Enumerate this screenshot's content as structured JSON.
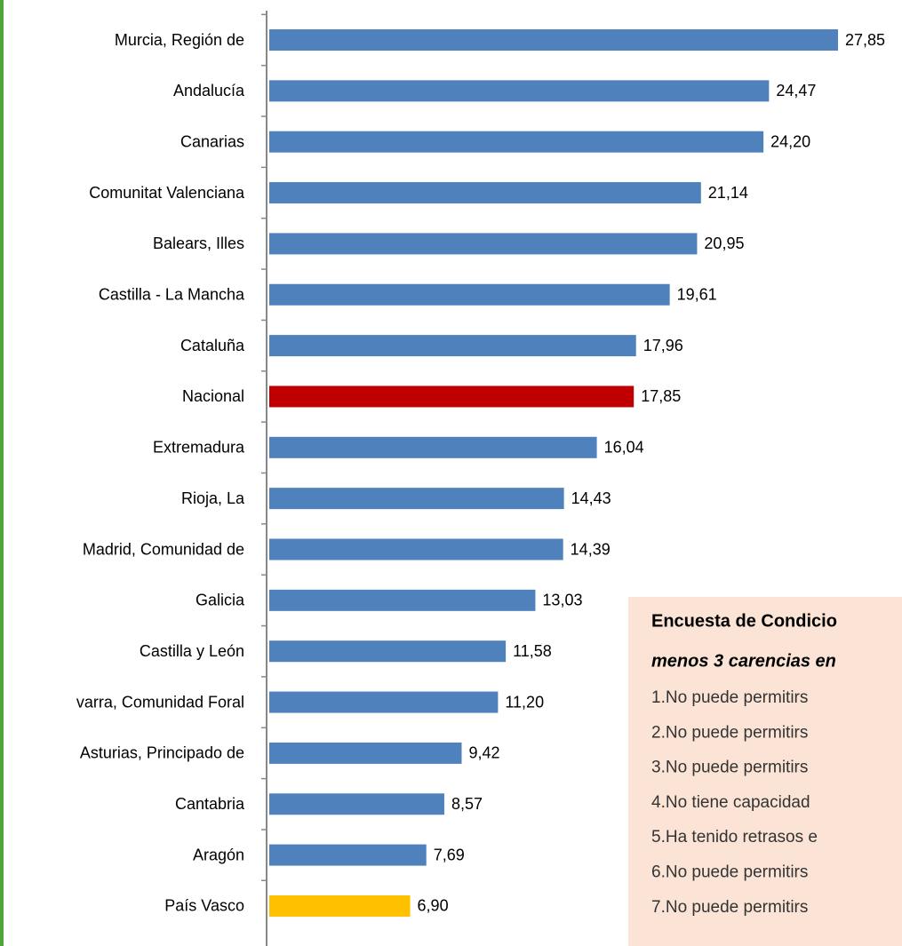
{
  "chart_data": {
    "type": "bar",
    "orientation": "horizontal",
    "categories": [
      "Murcia, Región de",
      "Andalucía",
      "Canarias",
      "Comunitat Valenciana",
      "Balears, Illes",
      "Castilla - La Mancha",
      "Cataluña",
      "Nacional",
      "Extremadura",
      "Rioja, La",
      "Madrid, Comunidad de",
      "Galicia",
      "Castilla y León",
      "varra, Comunidad Foral",
      "Asturias, Principado de",
      "Cantabria",
      "Aragón",
      "País Vasco"
    ],
    "values": [
      27.85,
      24.47,
      24.2,
      21.14,
      20.95,
      19.61,
      17.96,
      17.85,
      16.04,
      14.43,
      14.39,
      13.03,
      11.58,
      11.2,
      9.42,
      8.57,
      7.69,
      6.9
    ],
    "value_labels": [
      "27,85",
      "24,47",
      "24,20",
      "21,14",
      "20,95",
      "19,61",
      "17,96",
      "17,85",
      "16,04",
      "14,43",
      "14,39",
      "13,03",
      "11,58",
      "11,20",
      "9,42",
      "8,57",
      "7,69",
      "6,90"
    ],
    "colors": [
      "#4f81bd",
      "#4f81bd",
      "#4f81bd",
      "#4f81bd",
      "#4f81bd",
      "#4f81bd",
      "#4f81bd",
      "#c00000",
      "#4f81bd",
      "#4f81bd",
      "#4f81bd",
      "#4f81bd",
      "#4f81bd",
      "#4f81bd",
      "#4f81bd",
      "#4f81bd",
      "#4f81bd",
      "#ffc000"
    ],
    "xlim": [
      0,
      28
    ],
    "annotation": {
      "title": "Encuesta de Condicio",
      "subtitle": "menos 3 carencias en",
      "items": [
        "1.No puede permitirs",
        "2.No puede permitirs",
        "3.No puede permitirs",
        "4.No tiene capacidad",
        "5.Ha tenido retrasos e",
        "6.No puede permitirs",
        "7.No puede permitirs"
      ]
    }
  }
}
